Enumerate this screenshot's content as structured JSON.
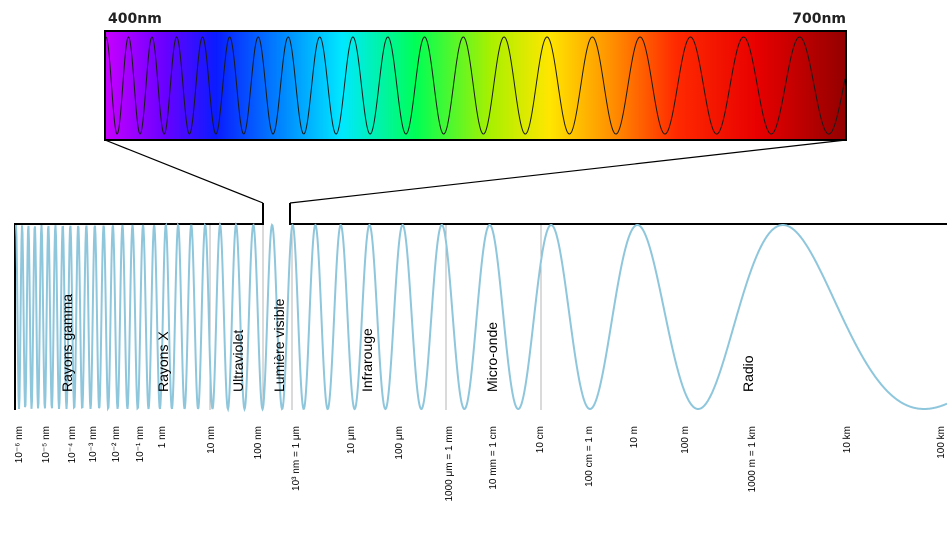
{
  "visible_strip": {
    "start_label": "400nm",
    "end_label": "700nm"
  },
  "bands": [
    {
      "label": "Rayons gamma"
    },
    {
      "label": "Rayons X"
    },
    {
      "label": "Ultraviolet"
    },
    {
      "label": "Lumière visible"
    },
    {
      "label": "Infrarouge"
    },
    {
      "label": "Micro-onde"
    },
    {
      "label": "Radio"
    }
  ],
  "ticks": [
    {
      "label": "10⁻⁶ nm"
    },
    {
      "label": "10⁻⁵ nm"
    },
    {
      "label": "10⁻⁴ nm"
    },
    {
      "label": "10⁻³ nm"
    },
    {
      "label": "10⁻² nm"
    },
    {
      "label": "10⁻¹ nm"
    },
    {
      "label": "1 nm"
    },
    {
      "label": "10 nm"
    },
    {
      "label": "100 nm"
    },
    {
      "label": "10³ nm = 1 μm"
    },
    {
      "label": "10 μm"
    },
    {
      "label": "100 μm"
    },
    {
      "label": "1000 μm = 1 mm"
    },
    {
      "label": "10 mm = 1 cm"
    },
    {
      "label": "10 cm"
    },
    {
      "label": "100 cm = 1 m"
    },
    {
      "label": "10 m"
    },
    {
      "label": "100 m"
    },
    {
      "label": "1000 m = 1 km"
    },
    {
      "label": "10 km"
    },
    {
      "label": "100 km"
    }
  ],
  "colors": {
    "wave": "#8ec6dc",
    "divider": "#b5b5b5",
    "frame": "#000000"
  }
}
